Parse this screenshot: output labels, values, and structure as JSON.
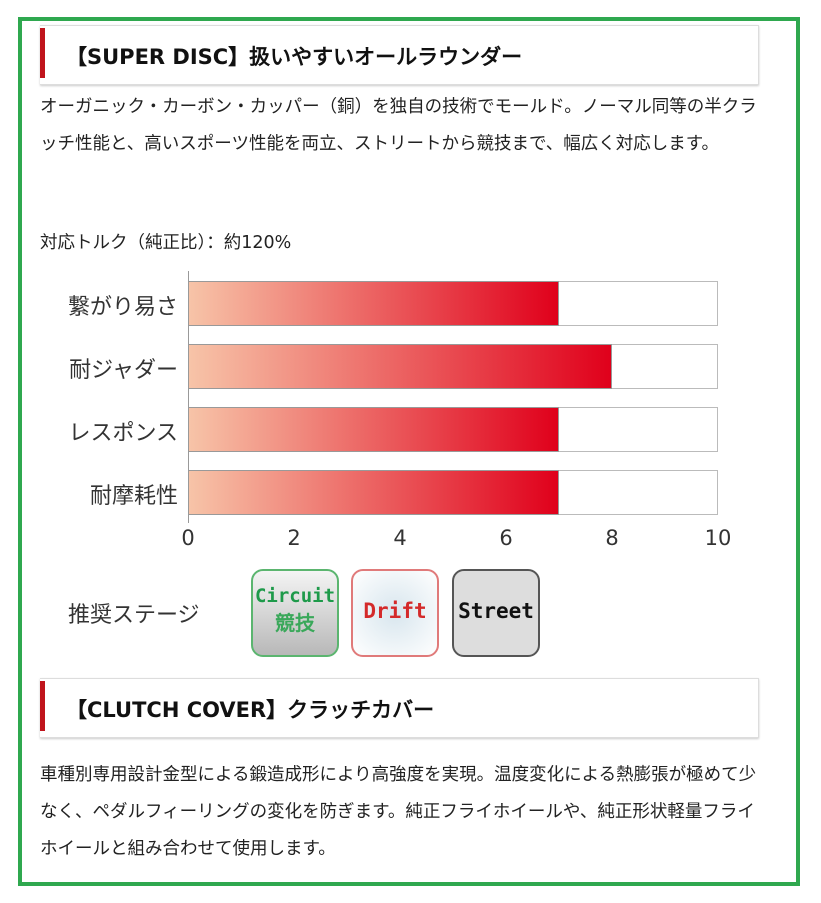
{
  "section1": {
    "title": "【SUPER DISC】扱いやすいオールラウンダー",
    "description": "オーガニック・カーボン・カッパー（銅）を独自の技術でモールド。ノーマル同等の半クラッチ性能と、高いスポーツ性能を両立、ストリートから競技まで、幅広く対応します。",
    "torque": "対応トルク（純正比）：約120%"
  },
  "chart_data": {
    "type": "bar",
    "orientation": "horizontal",
    "categories": [
      "繋がり易さ",
      "耐ジャダー",
      "レスポンス",
      "耐摩耗性"
    ],
    "values": [
      7,
      8,
      7,
      7
    ],
    "xlim": [
      0,
      10
    ],
    "xticks": [
      "0",
      "2",
      "4",
      "6",
      "8",
      "10"
    ],
    "colors": {
      "start": "#f7c4a8",
      "end": "#e0001b"
    },
    "grid": false
  },
  "stages": {
    "label": "推奨ステージ",
    "items": [
      {
        "en": "Circuit",
        "jp": "競技",
        "color": "#1e9a4a"
      },
      {
        "en": "Drift",
        "color": "#d42a2a"
      },
      {
        "en": "Street",
        "color": "#111111"
      }
    ]
  },
  "section2": {
    "title": "【CLUTCH COVER】クラッチカバー",
    "description": "車種別専用設計金型による鍛造成形により高強度を実現。温度変化による熱膨張が極めて少なく、ペダルフィーリングの変化を防ぎます。純正フライホイールや、純正形状軽量フライホイールと組み合わせて使用します。"
  }
}
